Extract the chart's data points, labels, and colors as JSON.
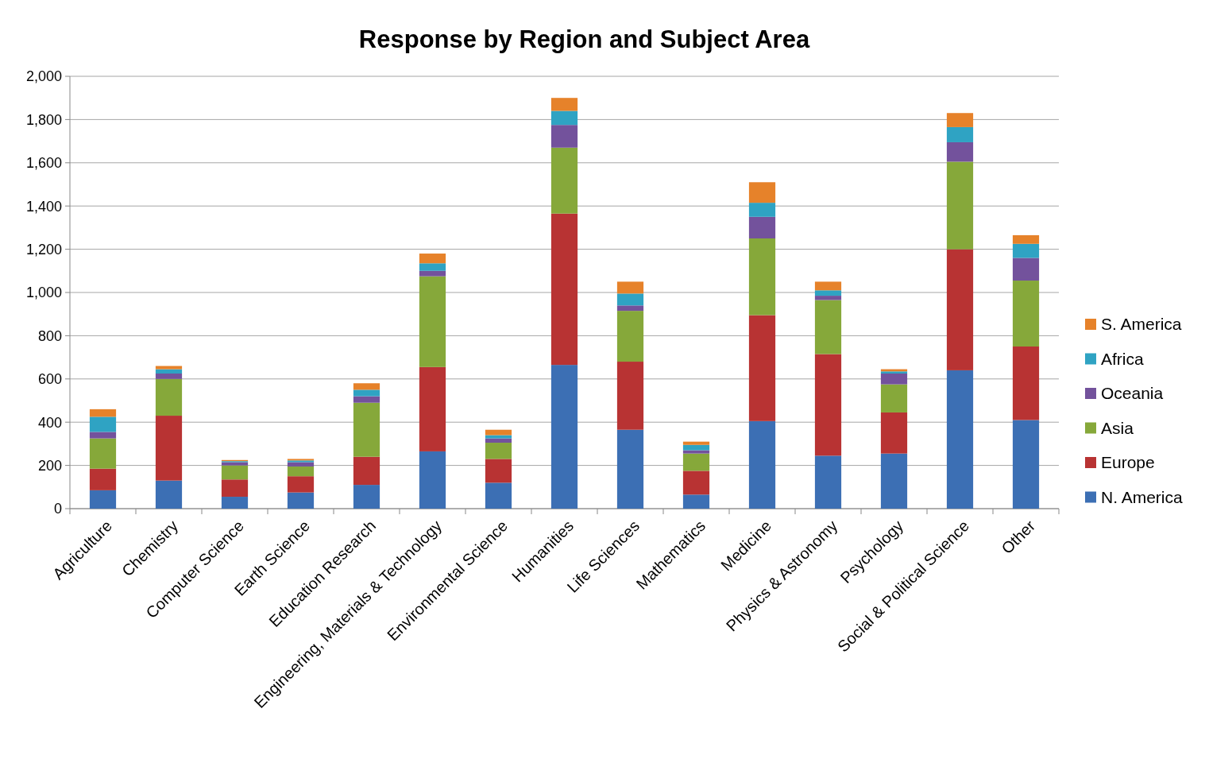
{
  "chart_data": {
    "type": "bar",
    "title": "Response by Region and Subject Area",
    "stacked": true,
    "categories": [
      "Agriculture",
      "Chemistry",
      "Computer Science",
      "Earth Science",
      "Education Research",
      "Engineering, Materials & Technology",
      "Environmental Science",
      "Humanities",
      "Life Sciences",
      "Mathematics",
      "Medicine",
      "Physics & Astronomy",
      "Psychology",
      "Social & Political Science",
      "Other"
    ],
    "series": [
      {
        "name": "N. America",
        "color": "#3c6fb4",
        "values": [
          85,
          130,
          55,
          75,
          110,
          265,
          120,
          665,
          365,
          65,
          405,
          245,
          255,
          640,
          410
        ]
      },
      {
        "name": "Europe",
        "color": "#b83333",
        "values": [
          100,
          300,
          80,
          75,
          130,
          390,
          110,
          700,
          315,
          110,
          490,
          470,
          190,
          560,
          340
        ]
      },
      {
        "name": "Asia",
        "color": "#86a83a",
        "values": [
          140,
          170,
          65,
          45,
          250,
          420,
          75,
          305,
          235,
          80,
          355,
          250,
          130,
          405,
          305
        ]
      },
      {
        "name": "Oceania",
        "color": "#73529c",
        "values": [
          30,
          25,
          15,
          20,
          30,
          25,
          20,
          105,
          25,
          15,
          100,
          20,
          50,
          90,
          105
        ]
      },
      {
        "name": "Africa",
        "color": "#2fa3c3",
        "values": [
          70,
          20,
          5,
          8,
          30,
          35,
          15,
          65,
          55,
          25,
          65,
          25,
          10,
          70,
          65
        ]
      },
      {
        "name": "S. America",
        "color": "#e6822a",
        "values": [
          35,
          15,
          5,
          7,
          30,
          45,
          25,
          60,
          55,
          15,
          95,
          40,
          10,
          65,
          40
        ]
      }
    ],
    "ylim": [
      0,
      2000
    ],
    "yticks": [
      0,
      {
        "value": 200,
        "label": "200"
      },
      {
        "value": 400,
        "label": "400"
      },
      {
        "value": 600,
        "label": "600"
      },
      {
        "value": 800,
        "label": "800"
      },
      {
        "value": 1000,
        "label": "1,000"
      },
      {
        "value": 1200,
        "label": "1,200"
      },
      {
        "value": 1400,
        "label": "1,400"
      },
      {
        "value": 1600,
        "label": "1,600"
      },
      {
        "value": 1800,
        "label": "1,800"
      },
      {
        "value": 2000,
        "label": "2,000"
      }
    ],
    "grid": "y",
    "legend": "right"
  }
}
